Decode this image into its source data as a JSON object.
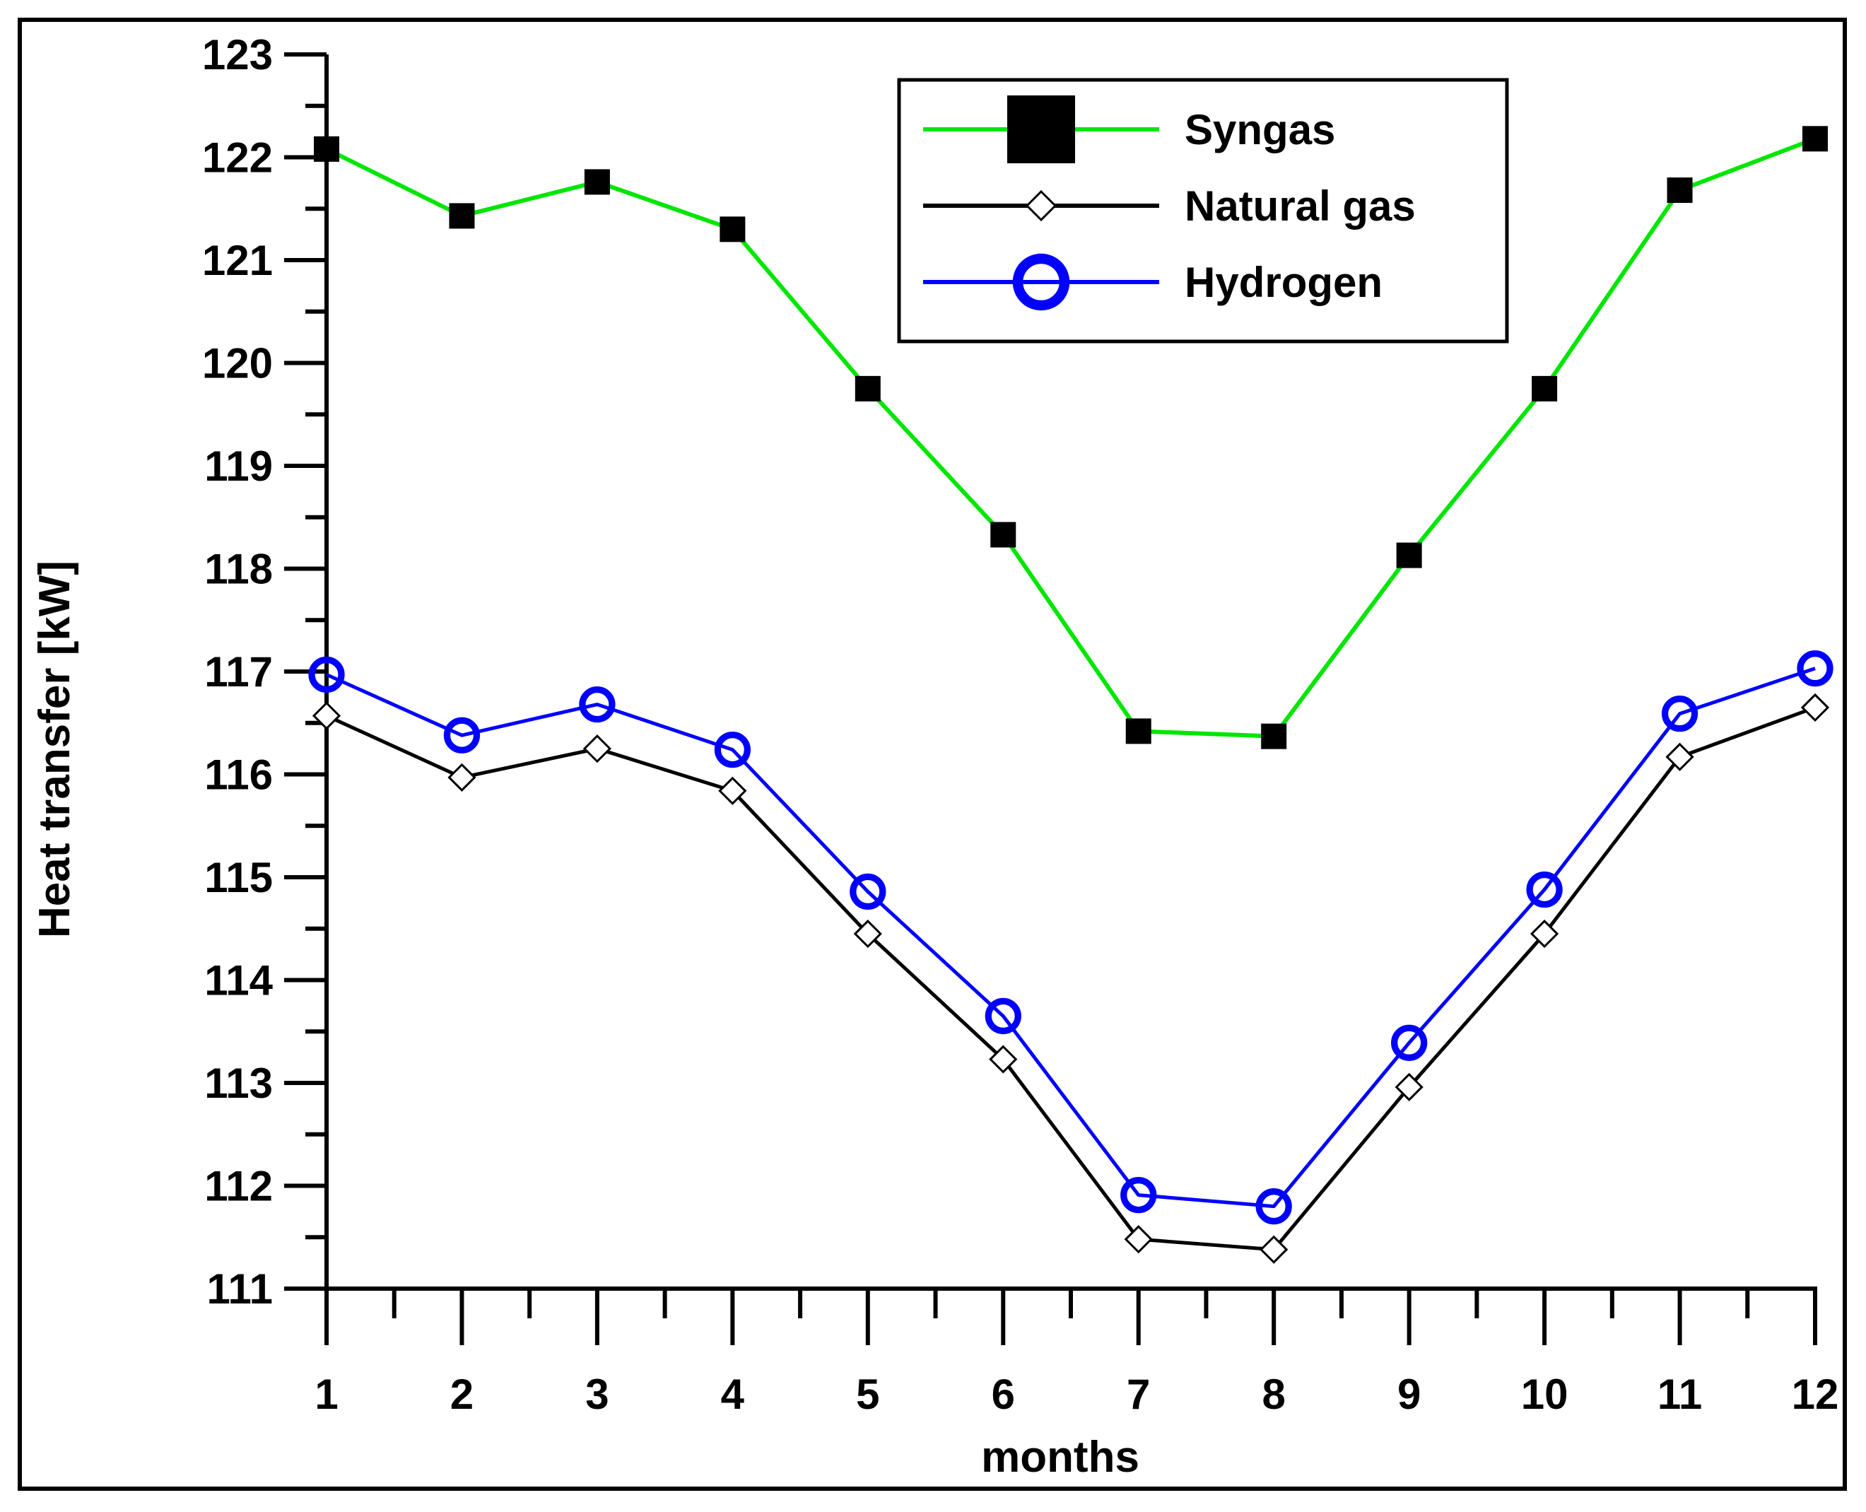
{
  "chart_data": {
    "type": "line",
    "title": "",
    "xlabel": "months",
    "ylabel": "Heat transfer [kW]",
    "x": [
      1,
      2,
      3,
      4,
      5,
      6,
      7,
      8,
      9,
      10,
      11,
      12
    ],
    "xlim": [
      1,
      12
    ],
    "ylim": [
      111,
      123
    ],
    "x_ticks": [
      "1",
      "2",
      "3",
      "4",
      "5",
      "6",
      "7",
      "8",
      "9",
      "10",
      "11",
      "12"
    ],
    "y_ticks": [
      "111",
      "112",
      "113",
      "114",
      "115",
      "116",
      "117",
      "118",
      "119",
      "120",
      "121",
      "122",
      "123"
    ],
    "grid": false,
    "legend_position": "top-right",
    "series": [
      {
        "name": "Syngas",
        "line_color": "#00e600",
        "marker": "square",
        "marker_color": "#000000",
        "values": [
          122.08,
          121.43,
          121.76,
          121.3,
          119.75,
          118.33,
          116.42,
          116.37,
          118.13,
          119.75,
          121.68,
          122.18
        ]
      },
      {
        "name": "Natural gas",
        "line_color": "#000000",
        "marker": "diamond",
        "marker_color": "#000000",
        "values": [
          116.57,
          115.97,
          116.25,
          115.84,
          114.45,
          113.23,
          111.48,
          111.38,
          112.96,
          114.45,
          116.17,
          116.65
        ]
      },
      {
        "name": "Hydrogen",
        "line_color": "#0000ff",
        "marker": "circle",
        "marker_color": "#0000ff",
        "values": [
          116.97,
          116.38,
          116.68,
          116.24,
          114.86,
          113.65,
          111.91,
          111.8,
          113.39,
          114.88,
          116.59,
          117.03
        ]
      }
    ]
  }
}
